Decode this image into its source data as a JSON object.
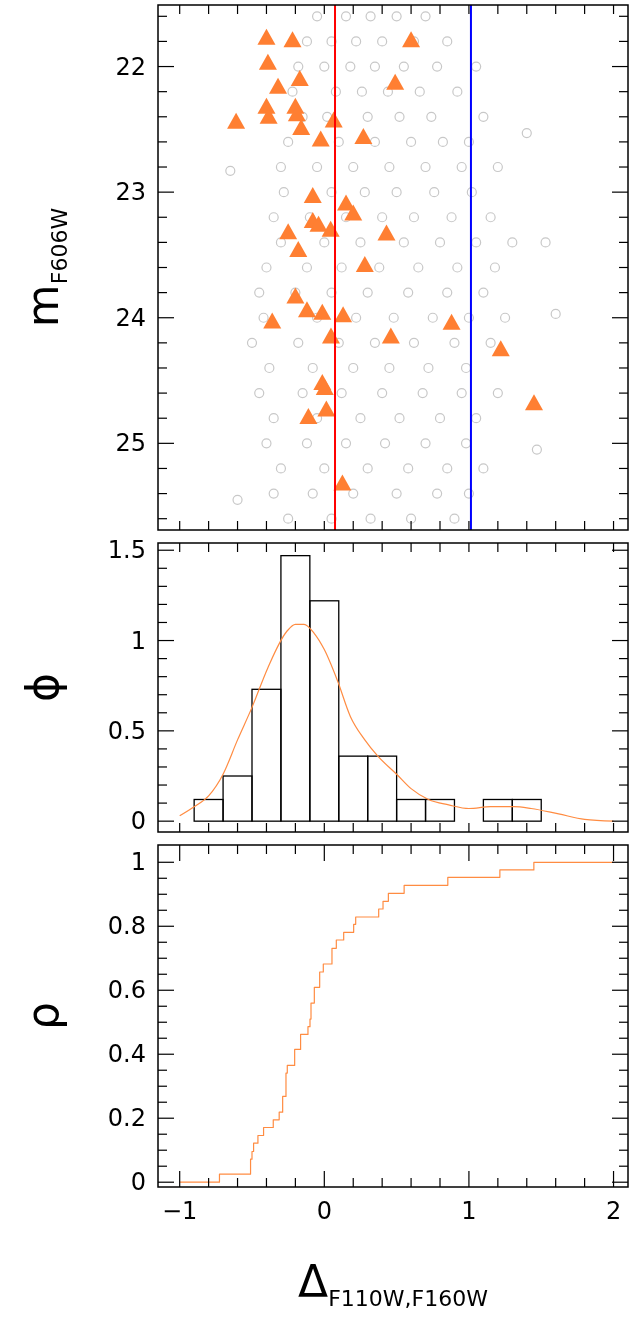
{
  "chart_data": [
    {
      "type": "scatter",
      "ylabel": "m$_{F606W}$",
      "xlim": [
        -1.15,
        2.1
      ],
      "ylim": [
        25.69,
        21.51
      ],
      "tick_labels": "y",
      "xticks": [
        {
          "value": -1,
          "label": null
        },
        {
          "value": -0.8,
          "label": null
        },
        {
          "value": -0.6,
          "label": null
        },
        {
          "value": -0.4,
          "label": null
        },
        {
          "value": -0.2,
          "label": null
        },
        {
          "value": 0,
          "label": null
        },
        {
          "value": 0.2,
          "label": null
        },
        {
          "value": 0.4,
          "label": null
        },
        {
          "value": 0.6,
          "label": null
        },
        {
          "value": 0.8,
          "label": null
        },
        {
          "value": 1,
          "label": null
        },
        {
          "value": 1.2,
          "label": null
        },
        {
          "value": 1.4,
          "label": null
        },
        {
          "value": 1.6,
          "label": null
        },
        {
          "value": 1.8,
          "label": null
        },
        {
          "value": 2,
          "label": null
        }
      ],
      "yticks": [
        {
          "value": 21.6,
          "label": null
        },
        {
          "value": 21.8,
          "label": null
        },
        22,
        {
          "value": 22.2,
          "label": null
        },
        {
          "value": 22.4,
          "label": null
        },
        {
          "value": 22.6,
          "label": null
        },
        {
          "value": 22.8,
          "label": null
        },
        23,
        {
          "value": 23.2,
          "label": null
        },
        {
          "value": 23.4,
          "label": null
        },
        {
          "value": 23.6,
          "label": null
        },
        {
          "value": 23.8,
          "label": null
        },
        24,
        {
          "value": 24.2,
          "label": null
        },
        {
          "value": 24.4,
          "label": null
        },
        {
          "value": 24.6,
          "label": null
        },
        {
          "value": 24.8,
          "label": null
        },
        25,
        {
          "value": 25.2,
          "label": null
        },
        {
          "value": 25.4,
          "label": null
        },
        {
          "value": 25.6,
          "label": null
        }
      ],
      "ref_lines": [
        {
          "axis": "x",
          "value": 0.074,
          "color": "#ff0000"
        },
        {
          "axis": "x",
          "value": 1.014,
          "color": "#0000ff"
        }
      ],
      "series": [
        {
          "color": "#c8c8c8",
          "marker": "circle",
          "x": [
            -0.05,
            0.15,
            0.32,
            0.5,
            0.7,
            -0.12,
            0.05,
            0.22,
            0.4,
            0.62,
            0.85,
            -0.18,
            0.0,
            0.18,
            0.35,
            0.55,
            0.78,
            1.05,
            -0.22,
            0.08,
            0.26,
            0.44,
            0.66,
            0.92,
            -0.15,
            0.02,
            0.3,
            0.52,
            0.74,
            1.1,
            1.4,
            -0.25,
            0.1,
            0.35,
            0.6,
            0.82,
            1.0,
            -0.65,
            -0.3,
            -0.05,
            0.2,
            0.45,
            0.7,
            0.95,
            1.2,
            -0.28,
            0.05,
            0.28,
            0.5,
            0.76,
            1.02,
            -0.35,
            -0.1,
            0.15,
            0.4,
            0.62,
            0.88,
            1.15,
            -0.3,
            0.0,
            0.25,
            0.55,
            0.8,
            1.05,
            1.3,
            1.53,
            -0.4,
            -0.12,
            0.12,
            0.38,
            0.65,
            0.92,
            1.18,
            -0.45,
            -0.2,
            0.05,
            0.3,
            0.58,
            0.85,
            1.1,
            1.6,
            -0.42,
            -0.05,
            0.22,
            0.48,
            0.75,
            1.0,
            1.25,
            -0.5,
            -0.18,
            0.1,
            0.35,
            0.62,
            0.9,
            1.15,
            -0.38,
            -0.08,
            0.2,
            0.45,
            0.72,
            0.98,
            -0.45,
            -0.15,
            0.12,
            0.4,
            0.68,
            0.95,
            1.2,
            -0.35,
            -0.05,
            0.25,
            0.52,
            0.8,
            1.05,
            -0.4,
            -0.12,
            0.15,
            0.42,
            0.7,
            0.98,
            1.47,
            -0.3,
            0.0,
            0.3,
            0.58,
            0.85,
            1.1,
            -0.35,
            -0.08,
            0.2,
            0.5,
            0.78,
            1.0,
            -0.6,
            -0.25,
            0.05,
            0.32,
            0.6,
            0.9
          ],
          "values": [
            21.6,
            21.6,
            21.6,
            21.6,
            21.6,
            21.8,
            21.8,
            21.8,
            21.8,
            21.8,
            21.8,
            22.0,
            22.0,
            22.0,
            22.0,
            22.0,
            22.0,
            22.0,
            22.2,
            22.2,
            22.2,
            22.2,
            22.2,
            22.2,
            22.4,
            22.4,
            22.4,
            22.4,
            22.4,
            22.4,
            22.53,
            22.6,
            22.6,
            22.6,
            22.6,
            22.6,
            22.6,
            22.83,
            22.8,
            22.8,
            22.8,
            22.8,
            22.8,
            22.8,
            22.8,
            23.0,
            23.0,
            23.0,
            23.0,
            23.0,
            23.0,
            23.2,
            23.2,
            23.2,
            23.2,
            23.2,
            23.2,
            23.2,
            23.4,
            23.4,
            23.4,
            23.4,
            23.4,
            23.4,
            23.4,
            23.4,
            23.6,
            23.6,
            23.6,
            23.6,
            23.6,
            23.6,
            23.6,
            23.8,
            23.8,
            23.8,
            23.8,
            23.8,
            23.8,
            23.8,
            23.97,
            24.0,
            24.0,
            24.0,
            24.0,
            24.0,
            24.0,
            24.0,
            24.2,
            24.2,
            24.2,
            24.2,
            24.2,
            24.2,
            24.2,
            24.4,
            24.4,
            24.4,
            24.4,
            24.4,
            24.4,
            24.6,
            24.6,
            24.6,
            24.6,
            24.6,
            24.6,
            24.6,
            24.8,
            24.8,
            24.8,
            24.8,
            24.8,
            24.8,
            25.0,
            25.0,
            25.0,
            25.0,
            25.0,
            25.0,
            25.05,
            25.2,
            25.2,
            25.2,
            25.2,
            25.2,
            25.2,
            25.4,
            25.4,
            25.4,
            25.4,
            25.4,
            25.4,
            25.45,
            25.6,
            25.6,
            25.6,
            25.6,
            25.6
          ]
        },
        {
          "color": "#ff7f32",
          "marker": "triangle",
          "x": [
            -0.4,
            -0.22,
            0.6,
            -0.39,
            -0.17,
            0.49,
            -0.32,
            -0.4,
            -0.2,
            -0.19,
            -0.385,
            -0.61,
            0.065,
            -0.16,
            -0.025,
            0.27,
            -0.08,
            0.15,
            0.2,
            -0.08,
            -0.04,
            0.044,
            -0.25,
            0.43,
            -0.18,
            0.28,
            -0.2,
            -0.12,
            -0.014,
            0.13,
            -0.36,
            0.88,
            0.046,
            0.46,
            1.22,
            -0.014,
            0.003,
            1.45,
            0.014,
            -0.11,
            0.125
          ],
          "values": [
            21.77,
            21.79,
            21.79,
            21.97,
            22.1,
            22.13,
            22.16,
            22.32,
            22.32,
            22.38,
            22.4,
            22.44,
            22.43,
            22.49,
            22.58,
            22.56,
            23.03,
            23.09,
            23.17,
            23.23,
            23.26,
            23.3,
            23.32,
            23.33,
            23.46,
            23.58,
            23.83,
            23.94,
            23.96,
            23.98,
            24.03,
            24.04,
            24.15,
            24.15,
            24.25,
            24.52,
            24.56,
            24.68,
            24.73,
            24.79,
            25.32
          ]
        }
      ]
    },
    {
      "type": "histogram",
      "ylabel": "ϕ",
      "xlim": [
        -1.15,
        2.1
      ],
      "ylim": [
        -0.06,
        1.54
      ],
      "tick_labels": "y",
      "color": "#000000",
      "bins": [
        -1.1,
        -0.9,
        -0.7,
        -0.5,
        -0.3,
        -0.1,
        0.1,
        0.3,
        0.5,
        0.7,
        0.9,
        1.1,
        1.3,
        1.5,
        1.7,
        1.9,
        2.1
      ],
      "values": [
        0,
        0.12,
        0.25,
        0.73,
        1.47,
        1.22,
        0.36,
        0.36,
        0.12,
        0.12,
        0,
        0.12,
        0.12,
        0,
        0,
        0
      ],
      "xticks": [
        {
          "value": -1,
          "label": null
        },
        {
          "value": -0.8,
          "label": null
        },
        {
          "value": -0.6,
          "label": null
        },
        {
          "value": -0.4,
          "label": null
        },
        {
          "value": -0.2,
          "label": null
        },
        {
          "value": 0,
          "label": null
        },
        {
          "value": 0.2,
          "label": null
        },
        {
          "value": 0.4,
          "label": null
        },
        {
          "value": 0.6,
          "label": null
        },
        {
          "value": 0.8,
          "label": null
        },
        {
          "value": 1,
          "label": null
        },
        {
          "value": 1.2,
          "label": null
        },
        {
          "value": 1.4,
          "label": null
        },
        {
          "value": 1.6,
          "label": null
        },
        {
          "value": 1.8,
          "label": null
        },
        {
          "value": 2,
          "label": null
        }
      ],
      "yticks": [
        0,
        {
          "value": 0.1,
          "label": null
        },
        {
          "value": 0.2,
          "label": null
        },
        {
          "value": 0.3,
          "label": null
        },
        {
          "value": 0.4,
          "label": null
        },
        0.5,
        {
          "value": 0.6,
          "label": null
        },
        {
          "value": 0.7,
          "label": null
        },
        {
          "value": 0.8,
          "label": null
        },
        {
          "value": 0.9,
          "label": null
        },
        1,
        {
          "value": 1.1,
          "label": null
        },
        {
          "value": 1.2,
          "label": null
        },
        {
          "value": 1.3,
          "label": null
        },
        {
          "value": 1.4,
          "label": null
        },
        1.5
      ],
      "series": [
        {
          "type": "line",
          "color": "#ff8c42",
          "x": [
            -1.0,
            -0.9,
            -0.8,
            -0.7,
            -0.6,
            -0.5,
            -0.39,
            -0.26,
            -0.2,
            -0.14,
            -0.07,
            0,
            0.09,
            0.18,
            0.28,
            0.37,
            0.5,
            0.6,
            0.72,
            0.86,
            1.0,
            1.15,
            1.31,
            1.43,
            1.62,
            1.8,
            2.0
          ],
          "values": [
            0.03,
            0.08,
            0.14,
            0.26,
            0.45,
            0.63,
            0.85,
            1.05,
            1.09,
            1.09,
            1.04,
            0.95,
            0.78,
            0.58,
            0.45,
            0.36,
            0.26,
            0.18,
            0.12,
            0.09,
            0.07,
            0.08,
            0.08,
            0.07,
            0.04,
            0.01,
            0.0
          ]
        }
      ]
    },
    {
      "type": "step",
      "ylabel": "ρ",
      "xlabel": "Δ$_{F110W,F160W}$",
      "xlim": [
        -1.15,
        2.1
      ],
      "ylim": [
        -0.015,
        1.054
      ],
      "color": "#ff8c42",
      "x": [
        -1.0,
        -0.725,
        -0.51,
        -0.5,
        -0.489,
        -0.459,
        -0.42,
        -0.353,
        -0.312,
        -0.288,
        -0.265,
        -0.256,
        -0.205,
        -0.164,
        -0.113,
        -0.099,
        -0.092,
        -0.069,
        -0.032,
        -0.007,
        0.053,
        0.083,
        0.134,
        0.203,
        0.217,
        0.376,
        0.406,
        0.443,
        0.552,
        0.854,
        1.214,
        1.449,
        2.0
      ],
      "values": [
        0,
        0.025,
        0.072,
        0.096,
        0.122,
        0.146,
        0.171,
        0.195,
        0.219,
        0.268,
        0.341,
        0.365,
        0.415,
        0.462,
        0.486,
        0.51,
        0.56,
        0.609,
        0.657,
        0.682,
        0.731,
        0.757,
        0.781,
        0.806,
        0.829,
        0.854,
        0.878,
        0.903,
        0.928,
        0.953,
        0.976,
        1.0,
        1.0
      ],
      "xticks": [
        {
          "value": -1,
          "label": "−1"
        },
        {
          "value": -0.8,
          "label": null
        },
        {
          "value": -0.6,
          "label": null
        },
        {
          "value": -0.4,
          "label": null
        },
        {
          "value": -0.2,
          "label": null
        },
        0,
        {
          "value": 0.2,
          "label": null
        },
        {
          "value": 0.4,
          "label": null
        },
        {
          "value": 0.6,
          "label": null
        },
        {
          "value": 0.8,
          "label": null
        },
        1,
        {
          "value": 1.2,
          "label": null
        },
        {
          "value": 1.4,
          "label": null
        },
        {
          "value": 1.6,
          "label": null
        },
        {
          "value": 1.8,
          "label": null
        },
        2
      ],
      "yticks": [
        0,
        {
          "value": 0.05,
          "label": null
        },
        {
          "value": 0.1,
          "label": null
        },
        {
          "value": 0.15,
          "label": null
        },
        0.2,
        {
          "value": 0.25,
          "label": null
        },
        {
          "value": 0.3,
          "label": null
        },
        {
          "value": 0.35,
          "label": null
        },
        0.4,
        {
          "value": 0.45,
          "label": null
        },
        {
          "value": 0.5,
          "label": null
        },
        {
          "value": 0.55,
          "label": null
        },
        0.6,
        {
          "value": 0.65,
          "label": null
        },
        {
          "value": 0.7,
          "label": null
        },
        {
          "value": 0.75,
          "label": null
        },
        0.8,
        {
          "value": 0.85,
          "label": null
        },
        {
          "value": 0.9,
          "label": null
        },
        {
          "value": 0.95,
          "label": null
        },
        1
      ]
    }
  ]
}
